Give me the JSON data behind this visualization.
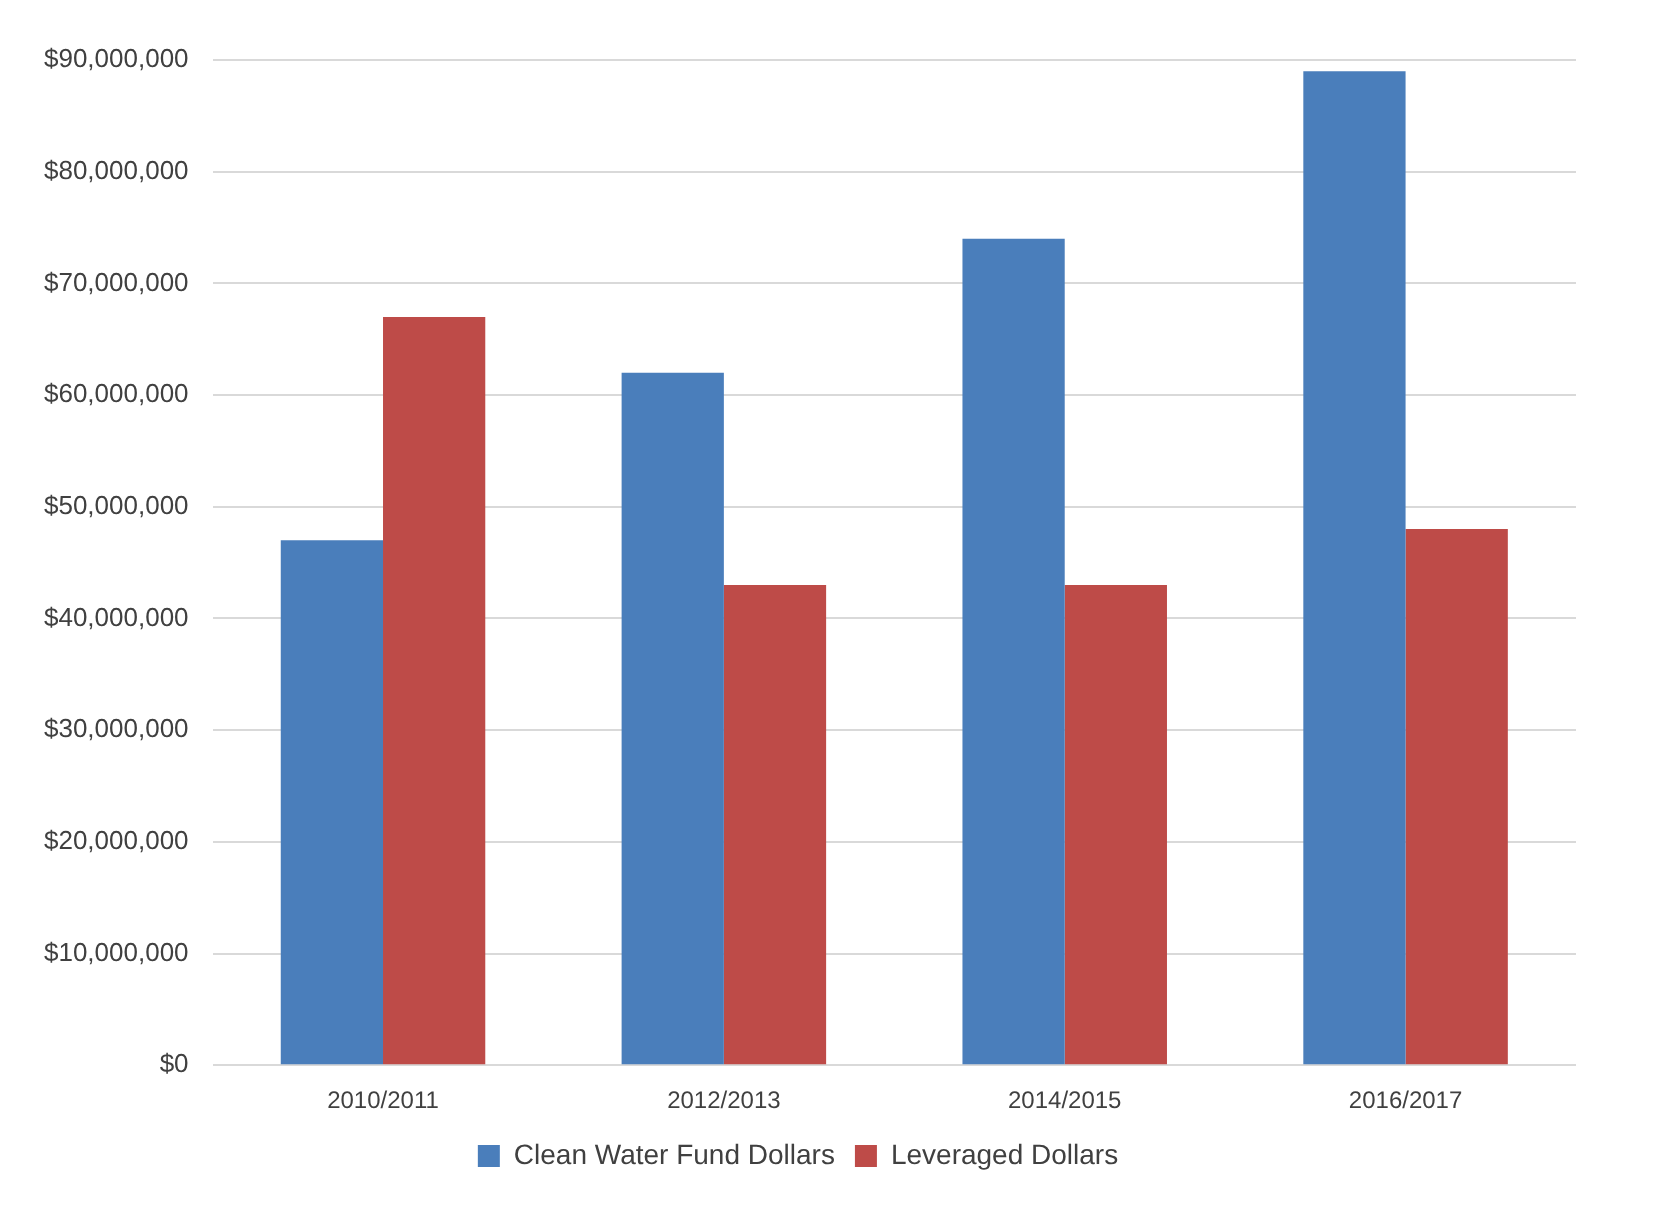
{
  "chart_data": {
    "type": "bar",
    "categories": [
      "2010/2011",
      "2012/2013",
      "2014/2015",
      "2016/2017"
    ],
    "series": [
      {
        "name": "Clean Water Fund Dollars",
        "color": "#4a7ebb",
        "values": [
          47000000,
          62000000,
          74000000,
          89000000
        ]
      },
      {
        "name": "Leveraged Dollars",
        "color": "#be4b48",
        "values": [
          67000000,
          43000000,
          43000000,
          48000000
        ]
      }
    ],
    "ylim": [
      0,
      90000000
    ],
    "yticks": [
      {
        "value": 0,
        "label": "$0"
      },
      {
        "value": 10000000,
        "label": "$10,000,000"
      },
      {
        "value": 20000000,
        "label": "$20,000,000"
      },
      {
        "value": 30000000,
        "label": "$30,000,000"
      },
      {
        "value": 40000000,
        "label": "$40,000,000"
      },
      {
        "value": 50000000,
        "label": "$50,000,000"
      },
      {
        "value": 60000000,
        "label": "$60,000,000"
      },
      {
        "value": 70000000,
        "label": "$70,000,000"
      },
      {
        "value": 80000000,
        "label": "$80,000,000"
      },
      {
        "value": 90000000,
        "label": "$90,000,000"
      }
    ],
    "grid": "y",
    "legend": "bottom"
  }
}
